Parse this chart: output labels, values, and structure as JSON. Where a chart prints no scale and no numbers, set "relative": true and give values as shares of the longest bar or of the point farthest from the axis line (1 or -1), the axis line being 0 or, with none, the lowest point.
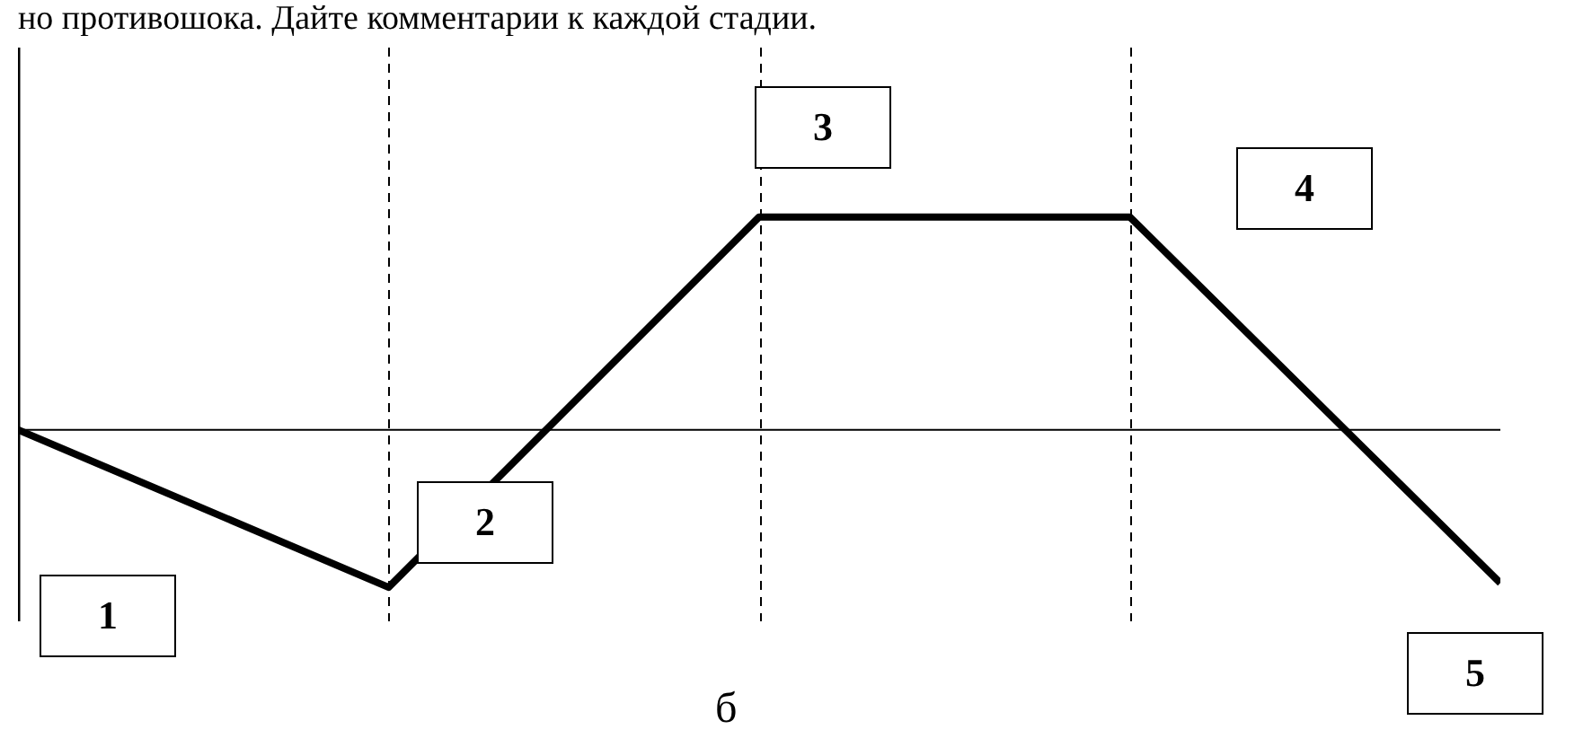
{
  "chart_data": {
    "type": "line",
    "title": "но противошока. Дайте комментарии к каждой стадии.",
    "categories": [
      null,
      null,
      null,
      null,
      null
    ],
    "values": [
      0,
      -0.74,
      1,
      1,
      -0.72
    ],
    "relative": true,
    "color": "#000000",
    "grid": "x",
    "line_style": "solid",
    "marker": "none",
    "annotations": [
      "1",
      "2",
      "3",
      "4",
      "5",
      "б"
    ]
  }
}
